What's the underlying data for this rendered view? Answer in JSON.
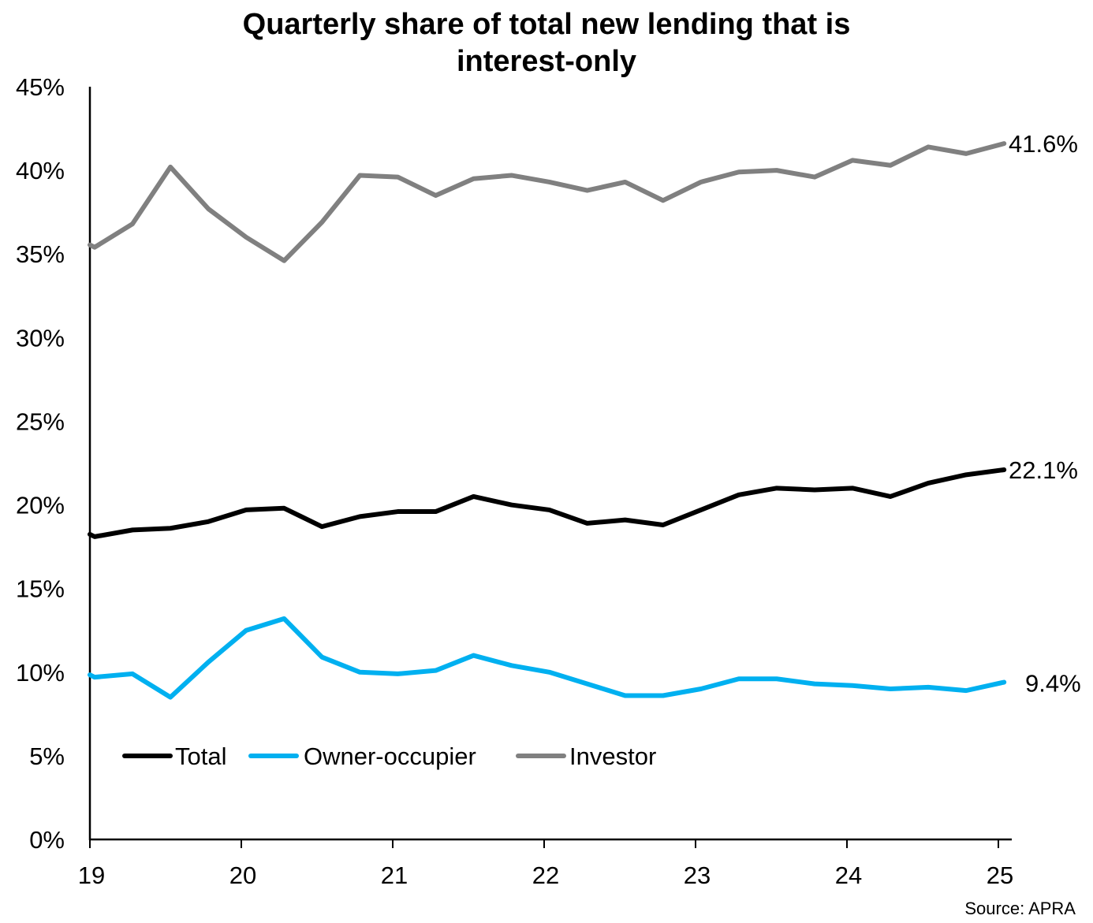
{
  "chart_data": {
    "type": "line",
    "title": "Quarterly share of total new lending that is interest-only",
    "title_lines": [
      "Quarterly share of total new lending that is",
      "interest-only"
    ],
    "xlabel": "",
    "ylabel": "",
    "ylim": [
      0,
      45
    ],
    "y_ticks": [
      "0%",
      "5%",
      "10%",
      "15%",
      "20%",
      "25%",
      "30%",
      "35%",
      "40%",
      "45%"
    ],
    "x_ticks": [
      "19",
      "20",
      "21",
      "22",
      "23",
      "24",
      "25"
    ],
    "x": [
      "2019Q1",
      "2019Q2",
      "2019Q3",
      "2019Q4",
      "2020Q1",
      "2020Q2",
      "2020Q3",
      "2020Q4",
      "2021Q1",
      "2021Q2",
      "2021Q3",
      "2021Q4",
      "2022Q1",
      "2022Q2",
      "2022Q3",
      "2022Q4",
      "2023Q1",
      "2023Q2",
      "2023Q3",
      "2023Q4",
      "2024Q1",
      "2024Q2",
      "2024Q3",
      "2024Q4",
      "2025Q1"
    ],
    "grid": false,
    "legend_position": "lower-left inside",
    "series": [
      {
        "name": "Total",
        "color": "#000000",
        "values": [
          18.1,
          18.5,
          18.6,
          19.0,
          19.7,
          19.8,
          18.7,
          19.3,
          19.6,
          19.6,
          20.5,
          20.0,
          19.7,
          18.9,
          19.1,
          18.8,
          19.7,
          20.6,
          21.0,
          20.9,
          21.0,
          20.5,
          21.3,
          21.8,
          22.1
        ],
        "end_label": "22.1%"
      },
      {
        "name": "Owner-occupier",
        "color": "#00B0F0",
        "values": [
          9.7,
          9.9,
          8.5,
          10.6,
          12.5,
          13.2,
          10.9,
          10.0,
          9.9,
          10.1,
          11.0,
          10.4,
          10.0,
          9.3,
          8.6,
          8.6,
          9.0,
          9.6,
          9.6,
          9.3,
          9.2,
          9.0,
          9.1,
          8.9,
          9.4
        ],
        "end_label": "9.4%"
      },
      {
        "name": "Investor",
        "color": "#808080",
        "values": [
          35.4,
          36.8,
          40.2,
          37.7,
          36.0,
          34.6,
          36.9,
          39.7,
          39.6,
          38.5,
          39.5,
          39.7,
          39.3,
          38.8,
          39.3,
          38.2,
          39.3,
          39.9,
          40.0,
          39.6,
          40.6,
          40.3,
          41.4,
          41.0,
          41.6
        ],
        "end_label": "41.6%"
      }
    ],
    "annotations": [
      "41.6%",
      "22.1%",
      "9.4%"
    ],
    "source": "Source: APRA"
  }
}
